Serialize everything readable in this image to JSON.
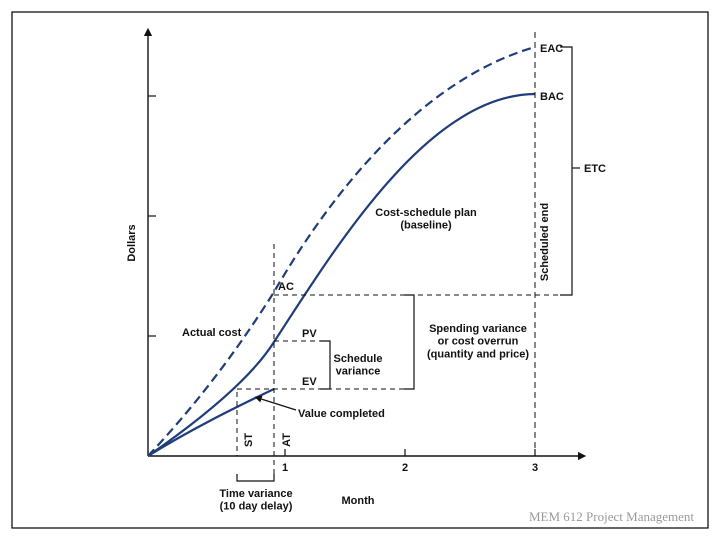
{
  "diagram": {
    "axis_label_x": "Month",
    "axis_label_y": "Dollars",
    "x_ticks": [
      "1",
      "2",
      "3"
    ],
    "curves": {
      "eac": "EAC",
      "bac": "BAC",
      "baseline": "Cost-schedule plan\n(baseline)",
      "actual_cost": "Actual cost",
      "value_completed": "Value completed"
    },
    "points": {
      "ac": "AC",
      "pv": "PV",
      "ev": "EV"
    },
    "labels": {
      "etc": "ETC",
      "scheduled_end": "Scheduled end",
      "schedule_variance": "Schedule\nvariance",
      "spending_variance": "Spending variance\nor cost overrun\n(quantity and price)",
      "time_variance": "Time variance\n(10 day delay)",
      "st": "ST",
      "at": "AT"
    },
    "colors": {
      "curve": "#1f3d7a",
      "line": "#111111"
    }
  },
  "footer": "MEM 612 Project Management"
}
